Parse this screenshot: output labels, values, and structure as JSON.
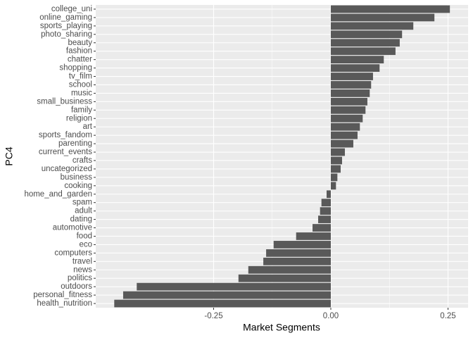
{
  "chart_data": {
    "type": "barh",
    "x_label": "Market Segments",
    "y_label": "PC4",
    "categories": [
      "college_uni",
      "online_gaming",
      "sports_playing",
      "photo_sharing",
      "beauty",
      "fashion",
      "chatter",
      "shopping",
      "tv_film",
      "school",
      "music",
      "small_business",
      "family",
      "religion",
      "art",
      "sports_fandom",
      "parenting",
      "current_events",
      "crafts",
      "uncategorized",
      "business",
      "cooking",
      "home_and_garden",
      "spam",
      "adult",
      "dating",
      "automotive",
      "food",
      "eco",
      "computers",
      "travel",
      "news",
      "politics",
      "outdoors",
      "personal_fitness",
      "health_nutrition"
    ],
    "values": [
      0.254,
      0.221,
      0.176,
      0.152,
      0.147,
      0.138,
      0.113,
      0.104,
      0.09,
      0.086,
      0.083,
      0.078,
      0.074,
      0.068,
      0.062,
      0.057,
      0.048,
      0.03,
      0.024,
      0.021,
      0.014,
      0.011,
      -0.009,
      -0.02,
      -0.023,
      -0.027,
      -0.039,
      -0.074,
      -0.122,
      -0.138,
      -0.144,
      -0.176,
      -0.197,
      -0.414,
      -0.443,
      -0.462
    ],
    "color": "#595959",
    "xlim": [
      -0.5015,
      0.2928
    ],
    "xticks": [
      {
        "value": -0.25,
        "label": "-0.25"
      },
      {
        "value": 0,
        "label": "0.00"
      },
      {
        "value": 0.25,
        "label": "0.25"
      }
    ],
    "grid": true
  }
}
